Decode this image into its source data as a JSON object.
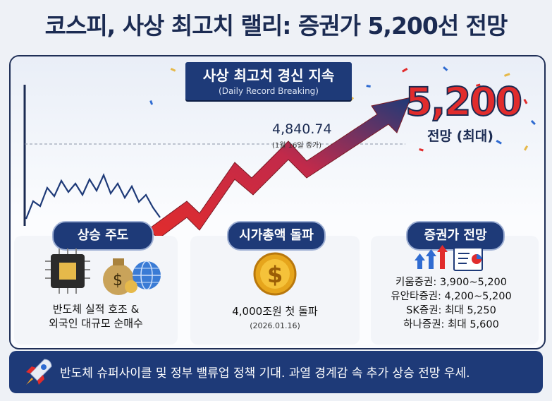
{
  "title": "코스피, 사상 최고치 랠리: 증권가 5,200선 전망",
  "banner": {
    "main": "사상 최고치 경신 지속",
    "sub": "(Daily Record Breaking)"
  },
  "target": {
    "value": "5,200",
    "label": "전망 (최대)"
  },
  "peak": {
    "value": "4,840.74",
    "note": "(1월 16일 종가)"
  },
  "cards": [
    {
      "header": "상승 주도",
      "lines": [
        "반도체 실적 호조 &",
        "외국인 대규모 순매수"
      ]
    },
    {
      "header": "시가총액 돌파",
      "lines": [
        "4,000조원 첫 돌파"
      ],
      "note": "(2026.01.16)"
    },
    {
      "header": "증권가 전망",
      "firms": [
        "키움증권: 3,900~5,200",
        "유안타증권: 4,200~5,200",
        "SK증권: 최대 5,250",
        "하나증권: 최대 5,600"
      ]
    }
  ],
  "footer": "반도체 슈퍼사이클 및 정부 밸류업 정책 기대. 과열 경계감 속 추가 상승 전망 우세.",
  "colors": {
    "navy": "#1e3a78",
    "red": "#e12c2c",
    "accent_blue": "#2f6bd1"
  },
  "icons": [
    "chip-icon",
    "money-bag-icon",
    "globe-icon",
    "dollar-coin-icon",
    "up-arrows-icon",
    "report-icon",
    "rocket-icon"
  ]
}
